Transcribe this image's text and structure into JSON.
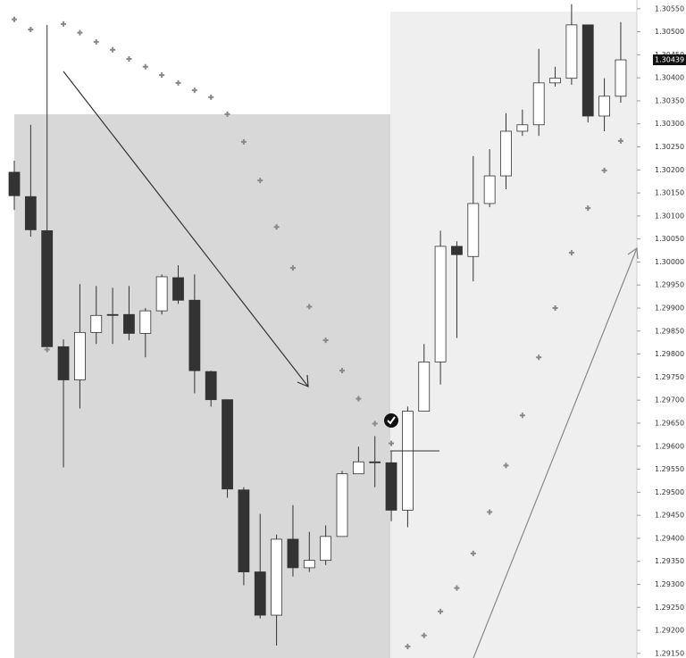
{
  "chart_data": {
    "type": "candlestick",
    "up_color": "#ffffff",
    "down_color": "#333333",
    "wick_color": "#333333",
    "sar_color": "#888888",
    "ylim": [
      1.2914,
      1.30569
    ],
    "yticks": [
      {
        "value": 1.2915,
        "label": "1.29150"
      },
      {
        "value": 1.292,
        "label": "1.29200"
      },
      {
        "value": 1.2925,
        "label": "1.29250"
      },
      {
        "value": 1.293,
        "label": "1.29300"
      },
      {
        "value": 1.2935,
        "label": "1.29350"
      },
      {
        "value": 1.294,
        "label": "1.29400"
      },
      {
        "value": 1.2945,
        "label": "1.29450"
      },
      {
        "value": 1.295,
        "label": "1.29500"
      },
      {
        "value": 1.2955,
        "label": "1.29550"
      },
      {
        "value": 1.296,
        "label": "1.29600"
      },
      {
        "value": 1.2965,
        "label": "1.29650"
      },
      {
        "value": 1.297,
        "label": "1.29700"
      },
      {
        "value": 1.2975,
        "label": "1.29750"
      },
      {
        "value": 1.298,
        "label": "1.29800"
      },
      {
        "value": 1.2985,
        "label": "1.29850"
      },
      {
        "value": 1.299,
        "label": "1.29900"
      },
      {
        "value": 1.2995,
        "label": "1.29950"
      },
      {
        "value": 1.3,
        "label": "1.30000"
      },
      {
        "value": 1.3005,
        "label": "1.30050"
      },
      {
        "value": 1.301,
        "label": "1.30100"
      },
      {
        "value": 1.3015,
        "label": "1.30150"
      },
      {
        "value": 1.302,
        "label": "1.30200"
      },
      {
        "value": 1.3025,
        "label": "1.30250"
      },
      {
        "value": 1.303,
        "label": "1.30300"
      },
      {
        "value": 1.3035,
        "label": "1.30350"
      },
      {
        "value": 1.304,
        "label": "1.30400"
      },
      {
        "value": 1.3045,
        "label": "1.30450"
      },
      {
        "value": 1.305,
        "label": "1.30500"
      },
      {
        "value": 1.3055,
        "label": "1.30550"
      }
    ],
    "last_price": {
      "value": 1.30439,
      "label": "1.30439"
    },
    "open": [
      1.30195,
      1.30142,
      1.30068,
      1.29816,
      1.29744,
      1.29847,
      1.29886,
      1.29886,
      1.29845,
      1.29894,
      1.29966,
      1.29917,
      1.29762,
      1.29701,
      1.29505,
      1.29327,
      1.29233,
      1.29398,
      1.29336,
      1.29352,
      1.29404,
      1.2954,
      1.29566,
      1.29564,
      1.29461,
      1.29676,
      1.29783,
      1.30034,
      1.30012,
      1.30127,
      1.30187,
      1.30284,
      1.30298,
      1.30389,
      1.30399,
      1.30515,
      1.30317,
      1.3036
    ],
    "high": [
      1.3022,
      1.30298,
      1.30515,
      1.29832,
      1.29952,
      1.29948,
      1.29944,
      1.29948,
      1.299,
      1.29973,
      1.29993,
      1.29973,
      1.29764,
      1.29701,
      1.29511,
      1.29453,
      1.29408,
      1.29472,
      1.29414,
      1.29428,
      1.29546,
      1.29599,
      1.29622,
      1.29589,
      1.29686,
      1.29822,
      1.30068,
      1.30045,
      1.3023,
      1.30245,
      1.30323,
      1.30331,
      1.30463,
      1.30424,
      1.3056,
      1.30515,
      1.30399,
      1.30521
    ],
    "low": [
      1.30113,
      1.30055,
      1.29806,
      1.29554,
      1.29682,
      1.29822,
      1.29822,
      1.2983,
      1.29793,
      1.29886,
      1.29909,
      1.29715,
      1.29686,
      1.29488,
      1.29298,
      1.29226,
      1.29167,
      1.29317,
      1.29327,
      1.29342,
      1.29404,
      1.2954,
      1.29511,
      1.29437,
      1.29424,
      1.29676,
      1.29734,
      1.29835,
      1.29958,
      1.30119,
      1.30158,
      1.30274,
      1.30274,
      1.30381,
      1.30385,
      1.30303,
      1.30284,
      1.30346
    ],
    "close": [
      1.30144,
      1.3007,
      1.29816,
      1.29744,
      1.29847,
      1.29884,
      1.29884,
      1.29845,
      1.29894,
      1.29968,
      1.29917,
      1.29764,
      1.29701,
      1.29507,
      1.29327,
      1.29233,
      1.29398,
      1.29336,
      1.29352,
      1.29404,
      1.2954,
      1.29566,
      1.29564,
      1.29461,
      1.29676,
      1.29783,
      1.30034,
      1.30016,
      1.30127,
      1.30187,
      1.30284,
      1.30298,
      1.30389,
      1.30399,
      1.30515,
      1.30317,
      1.3036,
      1.30439
    ],
    "sar": [
      1.30527,
      1.30505,
      1.2981,
      1.30517,
      1.30498,
      1.30478,
      1.30461,
      1.30441,
      1.30424,
      1.30406,
      1.30389,
      1.30373,
      1.30358,
      1.30321,
      1.30261,
      1.30177,
      1.30076,
      1.29987,
      1.29903,
      1.2983,
      1.29764,
      1.29703,
      1.29649,
      1.29606,
      1.29165,
      1.29189,
      1.29241,
      1.29292,
      1.29367,
      1.29457,
      1.29558,
      1.29667,
      1.29793,
      1.299,
      1.3002,
      1.30117,
      1.30199,
      1.30263
    ]
  }
}
